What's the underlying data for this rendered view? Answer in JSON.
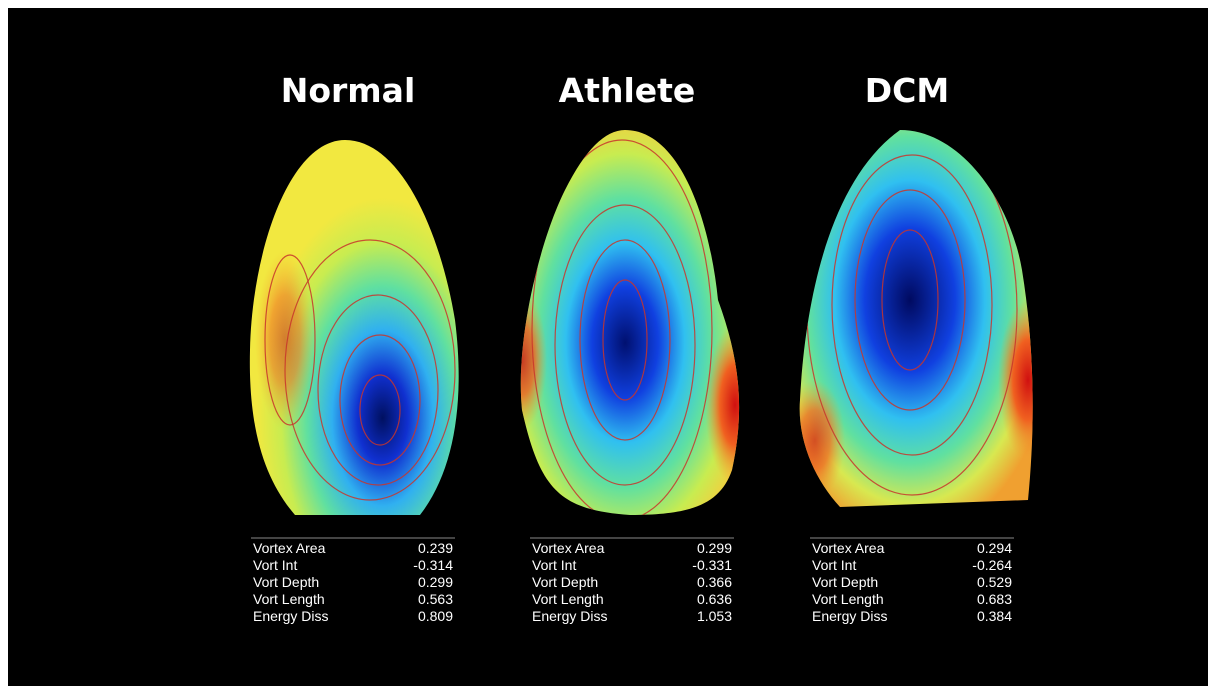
{
  "panels": [
    {
      "title": "Normal",
      "metrics": [
        {
          "label": "Vortex Area",
          "value": 0.239
        },
        {
          "label": "Vort Int",
          "value": -0.314
        },
        {
          "label": "Vort Depth",
          "value": 0.299
        },
        {
          "label": "Vort Length",
          "value": 0.563
        },
        {
          "label": "Energy Diss",
          "value": 0.809
        }
      ]
    },
    {
      "title": "Athlete",
      "metrics": [
        {
          "label": "Vortex Area",
          "value": 0.299
        },
        {
          "label": "Vort Int",
          "value": -0.331
        },
        {
          "label": "Vort Depth",
          "value": 0.366
        },
        {
          "label": "Vort Length",
          "value": 0.636
        },
        {
          "label": "Energy Diss",
          "value": 1.053
        }
      ]
    },
    {
      "title": "DCM",
      "metrics": [
        {
          "label": "Vortex Area",
          "value": 0.294
        },
        {
          "label": "Vort Int",
          "value": -0.264
        },
        {
          "label": "Vort Depth",
          "value": 0.529
        },
        {
          "label": "Vort Length",
          "value": 0.683
        },
        {
          "label": "Energy Diss",
          "value": 0.384
        }
      ]
    }
  ]
}
